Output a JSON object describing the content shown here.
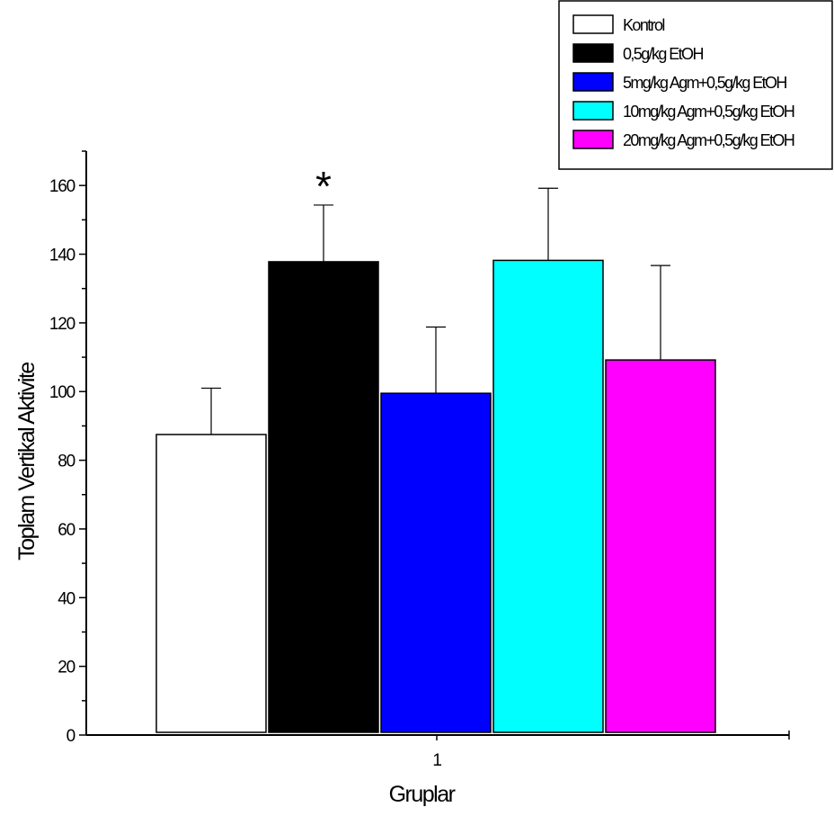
{
  "chart_data": {
    "type": "bar",
    "categories": [
      "1"
    ],
    "series": [
      {
        "name": "Kontrol",
        "value": 87.5,
        "error": 13.5,
        "color": "#ffffff"
      },
      {
        "name": "0,5g/kg EtOH",
        "value": 137.8,
        "error": 16.5,
        "color": "#000000"
      },
      {
        "name": "5mg/kg Agm+0,5g/kg EtOH",
        "value": 99.5,
        "error": 19.3,
        "color": "#0000ff"
      },
      {
        "name": "10mg/kg Agm+0,5g/kg EtOH",
        "value": 138.2,
        "error": 21.0,
        "color": "#00ffff"
      },
      {
        "name": "20mg/kg Agm+0,5g/kg EtOH",
        "value": 109.2,
        "error": 27.5,
        "color": "#ff00ff"
      }
    ],
    "xlabel": "Gruplar",
    "ylabel": "Toplam Vertikal Aktivite",
    "ylim": [
      0,
      170
    ],
    "yticks": [
      0,
      20,
      40,
      60,
      80,
      100,
      120,
      140,
      160
    ],
    "significance": {
      "series_index": 1,
      "marker": "*"
    },
    "grid": false,
    "legend_position": "top-right"
  }
}
